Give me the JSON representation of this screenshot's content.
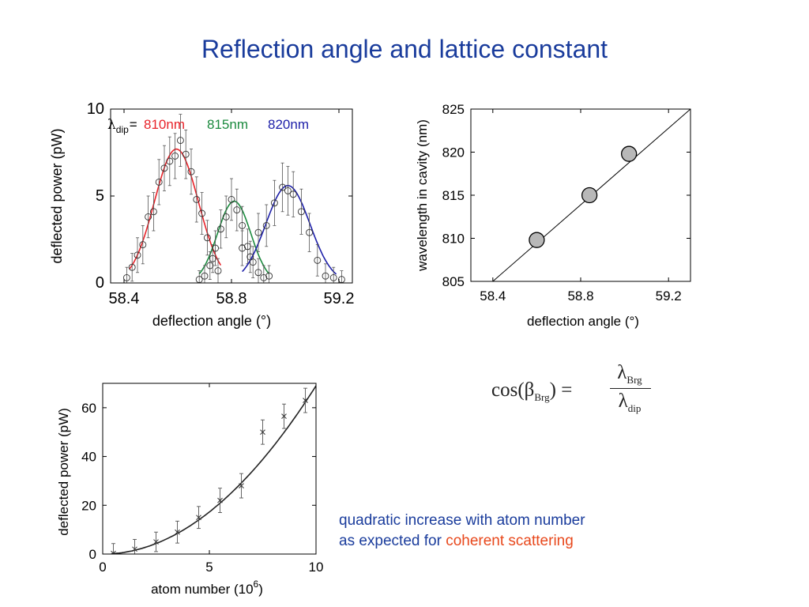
{
  "page": {
    "title": "Reflection angle and lattice constant"
  },
  "formula": {
    "lhs_func": "cos(",
    "lhs_symbol": "β",
    "lhs_subscript": "Brg",
    "lhs_close": ") =",
    "numerator_symbol": "λ",
    "numerator_subscript": "Brg",
    "denominator_symbol": "λ",
    "denominator_subscript": "dip"
  },
  "note": {
    "line1": "quadratic increase with atom number",
    "line2_prefix": "as expected for ",
    "line2_highlight": "coherent scattering"
  },
  "colors": {
    "title": "#1a3c9c",
    "highlight": "#e8481c",
    "red": "#e8232a",
    "green": "#1b8a3e",
    "blue": "#1d1fa8"
  },
  "chart_data": [
    {
      "id": "chart1",
      "type": "scatter",
      "xlabel": "deflection angle (°)",
      "ylabel": "deflected power (pW)",
      "xlim": [
        58.35,
        59.25
      ],
      "ylim": [
        0,
        10
      ],
      "xticks": [
        58.4,
        58.8,
        59.2
      ],
      "xtick_labels": [
        "58.4",
        "58.8",
        "59.2"
      ],
      "yticks": [
        0,
        5,
        10
      ],
      "ytick_labels": [
        "0",
        "5",
        "10"
      ],
      "legend": {
        "prefix_symbol": "λ",
        "prefix_subscript": "dip",
        "prefix_eq": "=",
        "entries": [
          "810nm",
          "815nm",
          "820nm"
        ]
      },
      "series": [
        {
          "name": "810nm",
          "color": "#e8232a",
          "fit": {
            "center": 58.595,
            "amplitude": 7.7,
            "sigma": 0.082,
            "x_range": [
              58.42,
              58.76
            ]
          },
          "points": [
            {
              "x": 58.41,
              "y": 0.3,
              "err": 0.6
            },
            {
              "x": 58.43,
              "y": 0.9,
              "err": 0.8
            },
            {
              "x": 58.45,
              "y": 1.6,
              "err": 1.0
            },
            {
              "x": 58.47,
              "y": 2.2,
              "err": 1.1
            },
            {
              "x": 58.49,
              "y": 3.8,
              "err": 1.2
            },
            {
              "x": 58.51,
              "y": 4.1,
              "err": 1.1
            },
            {
              "x": 58.53,
              "y": 5.8,
              "err": 1.3
            },
            {
              "x": 58.55,
              "y": 6.6,
              "err": 1.3
            },
            {
              "x": 58.57,
              "y": 7.0,
              "err": 1.4
            },
            {
              "x": 58.59,
              "y": 7.3,
              "err": 1.3
            },
            {
              "x": 58.61,
              "y": 8.2,
              "err": 1.5
            },
            {
              "x": 58.63,
              "y": 7.4,
              "err": 1.4
            },
            {
              "x": 58.65,
              "y": 6.4,
              "err": 1.3
            },
            {
              "x": 58.67,
              "y": 4.8,
              "err": 1.3
            },
            {
              "x": 58.69,
              "y": 4.0,
              "err": 1.2
            },
            {
              "x": 58.71,
              "y": 2.6,
              "err": 1.0
            },
            {
              "x": 58.73,
              "y": 1.4,
              "err": 0.8
            },
            {
              "x": 58.75,
              "y": 0.7,
              "err": 0.7
            }
          ]
        },
        {
          "name": "815nm",
          "color": "#1b8a3e",
          "fit": {
            "center": 58.81,
            "amplitude": 4.7,
            "sigma": 0.062,
            "x_range": [
              58.68,
              58.94
            ]
          },
          "points": [
            {
              "x": 58.68,
              "y": 0.2,
              "err": 0.5
            },
            {
              "x": 58.7,
              "y": 0.4,
              "err": 0.6
            },
            {
              "x": 58.72,
              "y": 1.0,
              "err": 0.8
            },
            {
              "x": 58.74,
              "y": 2.0,
              "err": 1.0
            },
            {
              "x": 58.76,
              "y": 3.1,
              "err": 1.1
            },
            {
              "x": 58.78,
              "y": 3.8,
              "err": 1.2
            },
            {
              "x": 58.8,
              "y": 4.8,
              "err": 1.2
            },
            {
              "x": 58.82,
              "y": 4.2,
              "err": 1.2
            },
            {
              "x": 58.84,
              "y": 3.3,
              "err": 1.1
            },
            {
              "x": 58.86,
              "y": 2.1,
              "err": 1.0
            },
            {
              "x": 58.88,
              "y": 1.2,
              "err": 0.9
            },
            {
              "x": 58.9,
              "y": 0.6,
              "err": 0.8
            },
            {
              "x": 58.92,
              "y": 0.3,
              "err": 0.7
            },
            {
              "x": 58.94,
              "y": 0.4,
              "err": 0.6
            }
          ]
        },
        {
          "name": "820nm",
          "color": "#1d1fa8",
          "fit": {
            "center": 59.01,
            "amplitude": 5.6,
            "sigma": 0.082,
            "x_range": [
              58.84,
              59.19
            ]
          },
          "points": [
            {
              "x": 58.84,
              "y": 2.0,
              "err": 1.0
            },
            {
              "x": 58.87,
              "y": 1.5,
              "err": 0.9
            },
            {
              "x": 58.9,
              "y": 2.9,
              "err": 1.1
            },
            {
              "x": 58.93,
              "y": 3.3,
              "err": 1.2
            },
            {
              "x": 58.96,
              "y": 4.6,
              "err": 1.3
            },
            {
              "x": 58.99,
              "y": 5.5,
              "err": 1.4
            },
            {
              "x": 59.01,
              "y": 5.3,
              "err": 1.4
            },
            {
              "x": 59.03,
              "y": 5.1,
              "err": 1.3
            },
            {
              "x": 59.06,
              "y": 4.1,
              "err": 1.3
            },
            {
              "x": 59.09,
              "y": 2.9,
              "err": 1.1
            },
            {
              "x": 59.12,
              "y": 1.3,
              "err": 0.9
            },
            {
              "x": 59.15,
              "y": 0.4,
              "err": 0.7
            },
            {
              "x": 59.18,
              "y": 0.3,
              "err": 0.6
            },
            {
              "x": 59.21,
              "y": 0.2,
              "err": 0.5
            }
          ]
        }
      ]
    },
    {
      "id": "chart2",
      "type": "scatter",
      "xlabel": "deflection angle (°)",
      "ylabel": "wavelength in cavity (nm)",
      "xlim": [
        58.3,
        59.3
      ],
      "ylim": [
        805,
        825
      ],
      "xticks": [
        58.4,
        58.8,
        59.2
      ],
      "xtick_labels": [
        "58.4",
        "58.8",
        "59.2"
      ],
      "yticks": [
        805,
        810,
        815,
        820,
        825
      ],
      "ytick_labels": [
        "805",
        "810",
        "815",
        "820",
        "825"
      ],
      "points": [
        {
          "x": 58.6,
          "y": 809.8
        },
        {
          "x": 58.84,
          "y": 815.0
        },
        {
          "x": 59.02,
          "y": 819.8
        }
      ],
      "fit_line": {
        "x": [
          58.4,
          59.3
        ],
        "y": [
          805.0,
          825.0
        ]
      }
    },
    {
      "id": "chart3",
      "type": "scatter",
      "xlabel": "atom number (10",
      "xlabel_sup": "6",
      "xlabel_close": ")",
      "ylabel": "deflected power (pW)",
      "xlim": [
        0,
        10
      ],
      "ylim": [
        0,
        70
      ],
      "xticks": [
        0,
        5,
        10
      ],
      "xtick_labels": [
        "0",
        "5",
        "10"
      ],
      "yticks": [
        0,
        20,
        40,
        60
      ],
      "ytick_labels": [
        "0",
        "20",
        "40",
        "60"
      ],
      "points": [
        {
          "x": 0.5,
          "y": 0.3,
          "err": 4
        },
        {
          "x": 1.5,
          "y": 2.0,
          "err": 4
        },
        {
          "x": 2.5,
          "y": 5.0,
          "err": 4
        },
        {
          "x": 3.5,
          "y": 9.0,
          "err": 4.5
        },
        {
          "x": 4.5,
          "y": 15.0,
          "err": 4.5
        },
        {
          "x": 5.5,
          "y": 22.0,
          "err": 5
        },
        {
          "x": 6.5,
          "y": 28.0,
          "err": 5
        },
        {
          "x": 7.5,
          "y": 50.0,
          "err": 5
        },
        {
          "x": 8.5,
          "y": 56.5,
          "err": 5
        },
        {
          "x": 9.5,
          "y": 63.0,
          "err": 5
        }
      ],
      "fit_curve": {
        "a": 0.69,
        "x_range": [
          0.4,
          10
        ]
      }
    }
  ]
}
